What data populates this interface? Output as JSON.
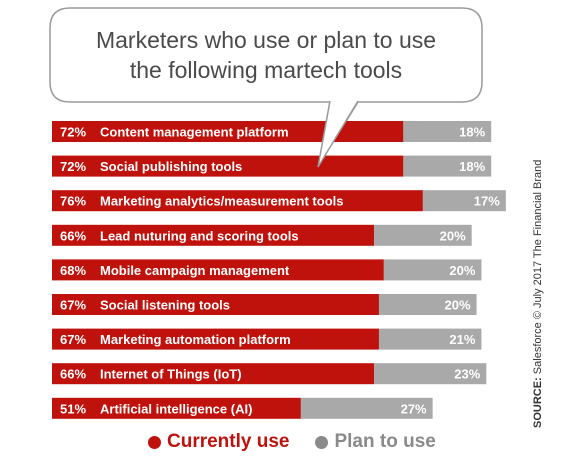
{
  "title_lines": [
    "Marketers who use or plan to use",
    "the following martech tools"
  ],
  "colors": {
    "currently_use": "#c0120c",
    "plan_to_use": "#a9a9a9",
    "callout_border": "#9a9a9a"
  },
  "legend": {
    "currently_use": "Currently use",
    "plan_to_use": "Plan to use"
  },
  "source": {
    "label": "SOURCE:",
    "text": "Salesforce © July 2017 The Financial Brand"
  },
  "chart_data": {
    "type": "bar",
    "orientation": "horizontal",
    "stacked": true,
    "title": "Marketers who use or plan to use the following martech tools",
    "categories": [
      "Content management platform",
      "Social publishing tools",
      "Marketing analytics/measurement tools",
      "Lead nuturing and scoring tools",
      "Mobile campaign management",
      "Social listening tools",
      "Marketing automation platform",
      "Internet of Things (IoT)",
      "Artificial intelligence (AI)"
    ],
    "series": [
      {
        "name": "Currently use",
        "values": [
          72,
          72,
          76,
          66,
          68,
          67,
          67,
          66,
          51
        ]
      },
      {
        "name": "Plan to use",
        "values": [
          18,
          18,
          17,
          20,
          20,
          20,
          21,
          23,
          27
        ]
      }
    ],
    "value_suffix": "%",
    "legend_position": "bottom",
    "grid": false
  }
}
